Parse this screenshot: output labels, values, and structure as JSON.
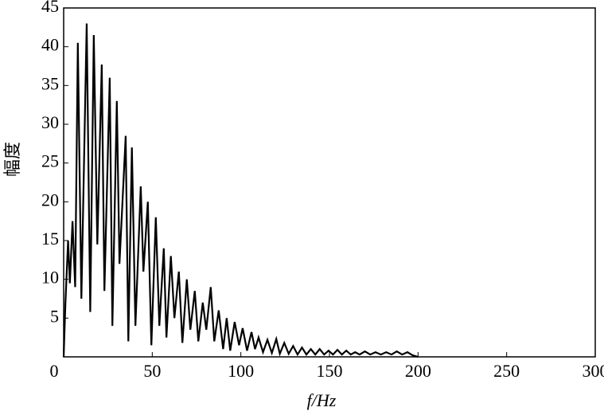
{
  "chart_data": {
    "type": "line",
    "x_label": "f/Hz",
    "y_label": "幅度",
    "color": "#000000",
    "x": [
      0,
      1,
      2.5,
      3.5,
      5,
      6.5,
      8,
      10,
      13,
      15,
      17,
      19,
      21.5,
      23,
      26,
      27.5,
      30,
      31.5,
      35,
      36.5,
      38.5,
      40.5,
      43.5,
      45,
      47.5,
      49.5,
      52,
      54,
      56.5,
      58,
      60.5,
      62.5,
      65,
      67,
      69.5,
      71.5,
      74,
      76,
      78.5,
      80.5,
      83,
      85,
      87.5,
      90,
      92,
      94,
      96.5,
      99,
      101,
      103.5,
      106,
      108,
      110,
      112.5,
      115,
      117.5,
      120,
      122,
      124.5,
      127,
      129.5,
      132,
      134.5,
      137,
      139.5,
      142,
      144.5,
      147,
      149.5,
      152,
      154.5,
      157,
      159.5,
      162,
      164.5,
      167,
      170,
      173,
      176,
      179,
      182,
      185,
      188,
      191,
      194,
      197,
      200
    ],
    "values": [
      0,
      7,
      15,
      9.5,
      17.5,
      9,
      40.5,
      7.5,
      43,
      5.8,
      41.5,
      14.5,
      37.7,
      8.5,
      36,
      4,
      33,
      12,
      28.5,
      2,
      27,
      4,
      22,
      11,
      20,
      1.5,
      18,
      4,
      14,
      2.5,
      13,
      5,
      11,
      1.8,
      10,
      3.5,
      8.5,
      2,
      7,
      3.5,
      9,
      2,
      6,
      1,
      5,
      0.8,
      4.5,
      1.5,
      3.7,
      0.8,
      3.2,
      1,
      2.5,
      0.6,
      2.2,
      0.5,
      2.3,
      0.4,
      1.8,
      0.4,
      1.4,
      0.3,
      1.2,
      0.3,
      1,
      0.3,
      1,
      0.3,
      0.8,
      0.3,
      0.9,
      0.3,
      0.8,
      0.3,
      0.6,
      0.3,
      0.7,
      0.3,
      0.6,
      0.3,
      0.6,
      0.3,
      0.7,
      0.3,
      0.6,
      0.2,
      0
    ],
    "xlim": [
      0,
      300
    ],
    "ylim": [
      0,
      45
    ],
    "xticks": [
      0,
      50,
      100,
      150,
      200,
      250,
      300
    ],
    "yticks": [
      5,
      10,
      15,
      20,
      25,
      30,
      35,
      40,
      45
    ]
  }
}
